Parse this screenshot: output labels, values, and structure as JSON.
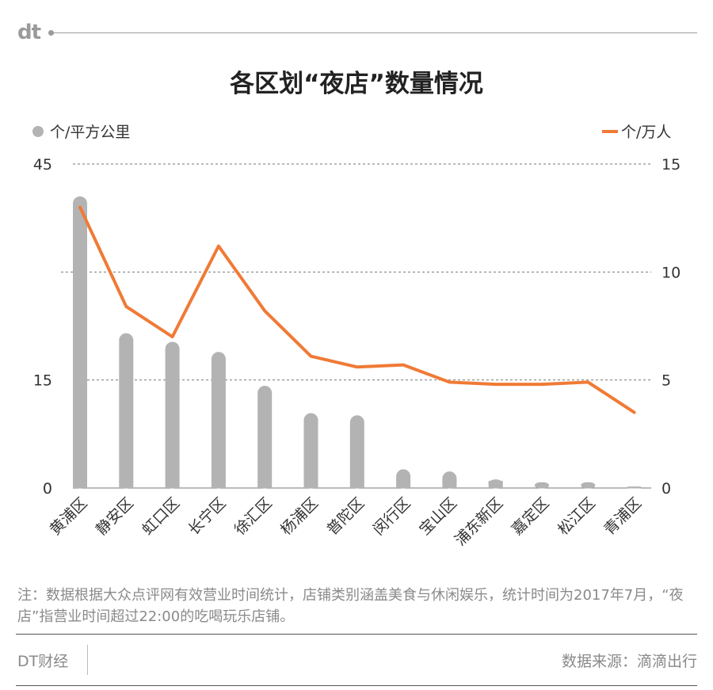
{
  "header": {
    "logo": "dt"
  },
  "title": "各区划“夜店”数量情况",
  "legend": {
    "left": "个/平方公里",
    "right": "个/万人"
  },
  "colors": {
    "bars": "#b3b3b3",
    "line": "#f07a36",
    "grid": "#777777",
    "text": "#333333"
  },
  "chart_data": {
    "type": "bar+line",
    "categories": [
      "黄浦区",
      "静安区",
      "虹口区",
      "长宁区",
      "徐汇区",
      "杨浦区",
      "普陀区",
      "闵行区",
      "宝山区",
      "浦东新区",
      "嘉定区",
      "松江区",
      "青浦区"
    ],
    "series": [
      {
        "name": "个/平方公里",
        "type": "bar",
        "axis": "left",
        "values": [
          40.5,
          21.5,
          20.3,
          18.9,
          14.2,
          10.4,
          10.1,
          2.6,
          2.3,
          1.2,
          0.8,
          0.8,
          0.2
        ]
      },
      {
        "name": "个/万人",
        "type": "line",
        "axis": "right",
        "values": [
          13.0,
          8.4,
          7.0,
          11.2,
          8.2,
          6.1,
          5.6,
          5.7,
          4.9,
          4.8,
          4.8,
          4.9,
          3.5
        ]
      }
    ],
    "y_left": {
      "ticks": [
        0,
        15,
        45
      ],
      "ylim": [
        0,
        45
      ]
    },
    "y_right": {
      "ticks": [
        0,
        5,
        10,
        15
      ],
      "ylim": [
        0,
        15
      ]
    },
    "grid": true,
    "legend_position": "top"
  },
  "note": "注：数据根据大众点评网有效营业时间统计，店铺类别涵盖美食与休闲娱乐，统计时间为2017年7月，“夜店”指营业时间超过22:00的吃喝玩乐店铺。",
  "footer": {
    "brand": "DT财经",
    "source": "数据来源：滴滴出行"
  }
}
